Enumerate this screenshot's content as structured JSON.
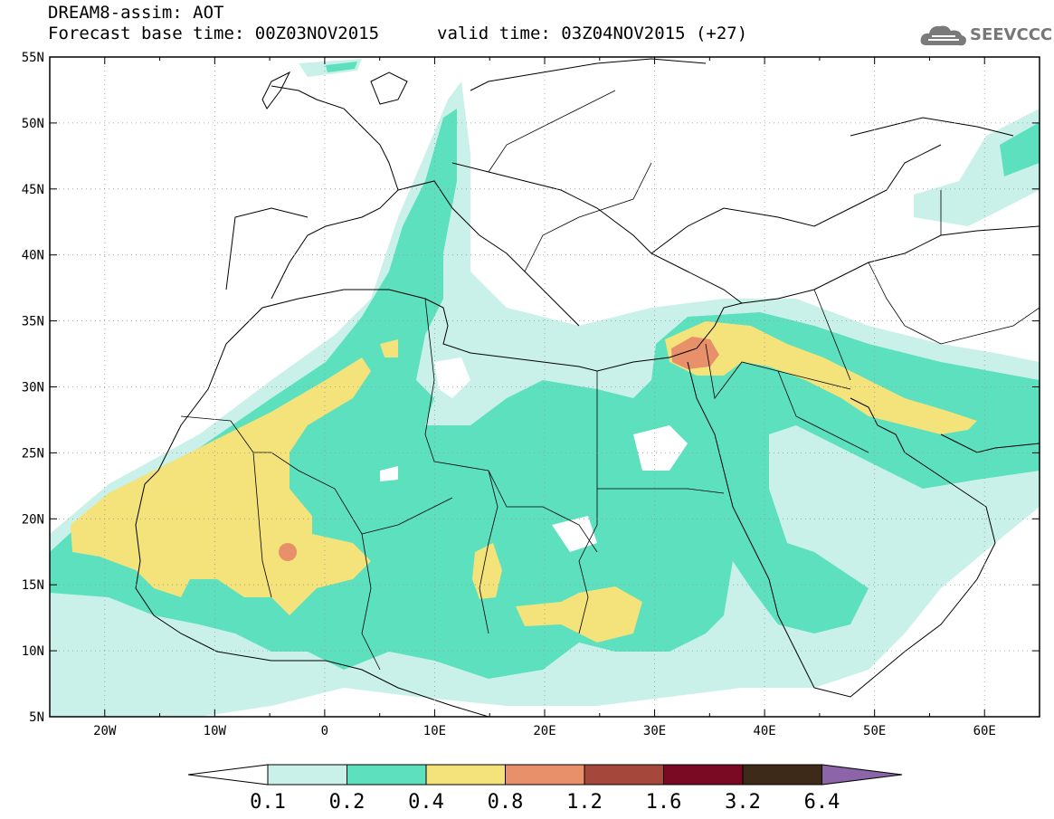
{
  "header": {
    "title": "DREAM8-assim: AOT",
    "base_time": "Forecast base time: 00Z03NOV2015",
    "valid_time": "valid time: 03Z04NOV2015 (+27)"
  },
  "logo": {
    "text": "SEEVCCC",
    "icon": "cloud-logo-icon"
  },
  "map": {
    "lon_range": [
      -25,
      65
    ],
    "lat_range": [
      5,
      55
    ],
    "lon_ticks": [
      "20W",
      "10W",
      "0",
      "10E",
      "20E",
      "30E",
      "40E",
      "50E",
      "60E"
    ],
    "lat_ticks": [
      "55N",
      "50N",
      "45N",
      "40N",
      "35N",
      "30N",
      "25N",
      "20N",
      "15N",
      "10N",
      "5N"
    ],
    "grid": "dotted"
  },
  "colorbar": {
    "levels": [
      "0.1",
      "0.2",
      "0.4",
      "0.8",
      "1.2",
      "1.6",
      "3.2",
      "6.4"
    ],
    "colors": [
      "#ffffff",
      "#c9f1ea",
      "#5de0be",
      "#f4e27a",
      "#e8906a",
      "#a5473a",
      "#7a0a24",
      "#3d2a18",
      "#8c64a8"
    ]
  }
}
